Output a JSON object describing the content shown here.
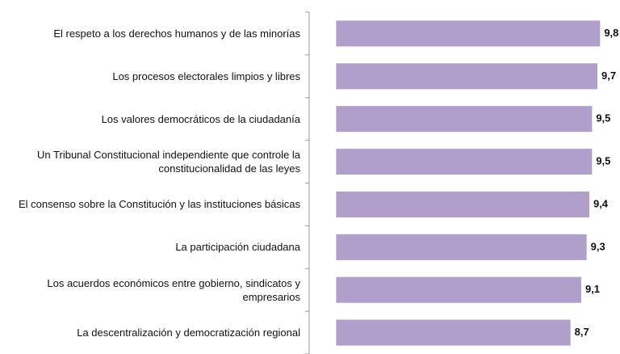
{
  "chart_data": {
    "type": "bar",
    "orientation": "horizontal",
    "categories": [
      "El respeto a los derechos humanos y de las minorías",
      "Los procesos electorales limpios y libres",
      "Los valores democráticos de la ciudadanía",
      "Un Tribunal Constitucional independiente que controle la constitucionalidad de las leyes",
      "El consenso sobre la Constitución y las instituciones básicas",
      "La participación ciudadana",
      "Los acuerdos económicos entre gobierno, sindicatos y empresarios",
      "La descentralización y democratización regional"
    ],
    "values": [
      9.8,
      9.7,
      9.5,
      9.5,
      9.4,
      9.3,
      9.1,
      8.7
    ],
    "value_labels": [
      "9,8",
      "9,7",
      "9,5",
      "9,5",
      "9,4",
      "9,3",
      "9,1",
      "8,7"
    ],
    "color": "#b09fca",
    "xlim": [
      -1,
      10
    ]
  }
}
